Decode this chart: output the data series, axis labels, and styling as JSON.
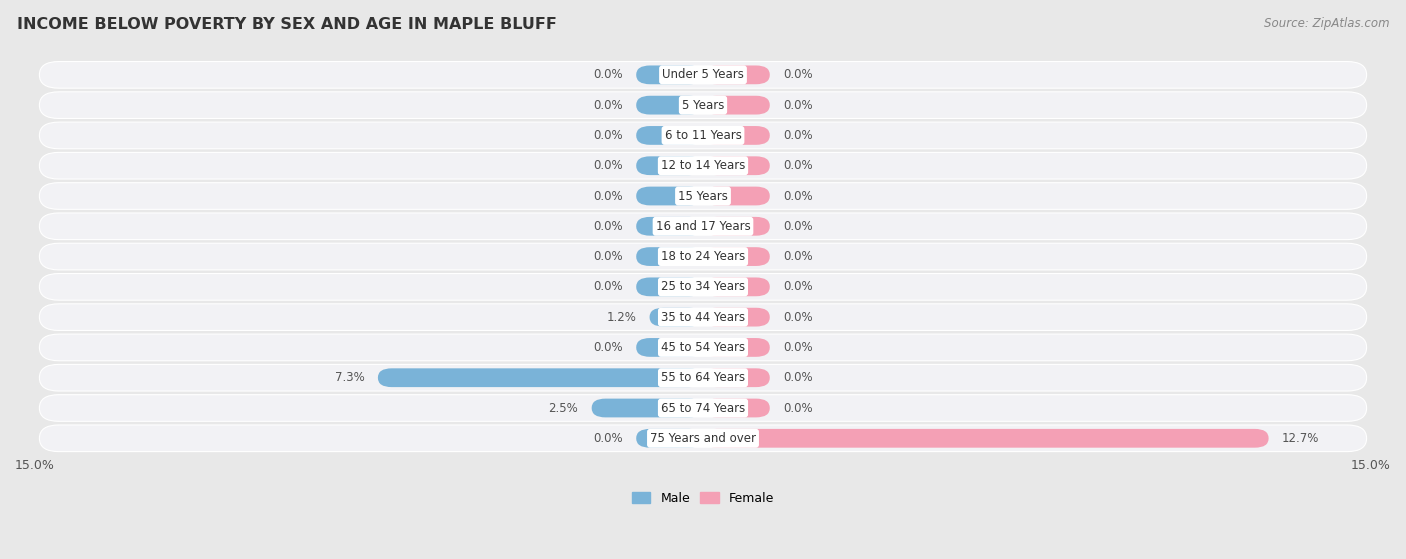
{
  "title": "INCOME BELOW POVERTY BY SEX AND AGE IN MAPLE BLUFF",
  "source": "Source: ZipAtlas.com",
  "categories": [
    "Under 5 Years",
    "5 Years",
    "6 to 11 Years",
    "12 to 14 Years",
    "15 Years",
    "16 and 17 Years",
    "18 to 24 Years",
    "25 to 34 Years",
    "35 to 44 Years",
    "45 to 54 Years",
    "55 to 64 Years",
    "65 to 74 Years",
    "75 Years and over"
  ],
  "male": [
    0.0,
    0.0,
    0.0,
    0.0,
    0.0,
    0.0,
    0.0,
    0.0,
    1.2,
    0.0,
    7.3,
    2.5,
    0.0
  ],
  "female": [
    0.0,
    0.0,
    0.0,
    0.0,
    0.0,
    0.0,
    0.0,
    0.0,
    0.0,
    0.0,
    0.0,
    0.0,
    12.7
  ],
  "male_color": "#7ab3d8",
  "female_color": "#f4a0b5",
  "male_label": "Male",
  "female_label": "Female",
  "xlim": 15.0,
  "background_color": "#e8e8e8",
  "row_bg_color": "#f2f2f5",
  "bar_background": "#ffffff",
  "title_fontsize": 11.5,
  "source_fontsize": 8.5,
  "axis_label_fontsize": 9,
  "legend_fontsize": 9,
  "label_fontsize": 8.5,
  "cat_fontsize": 8.5
}
